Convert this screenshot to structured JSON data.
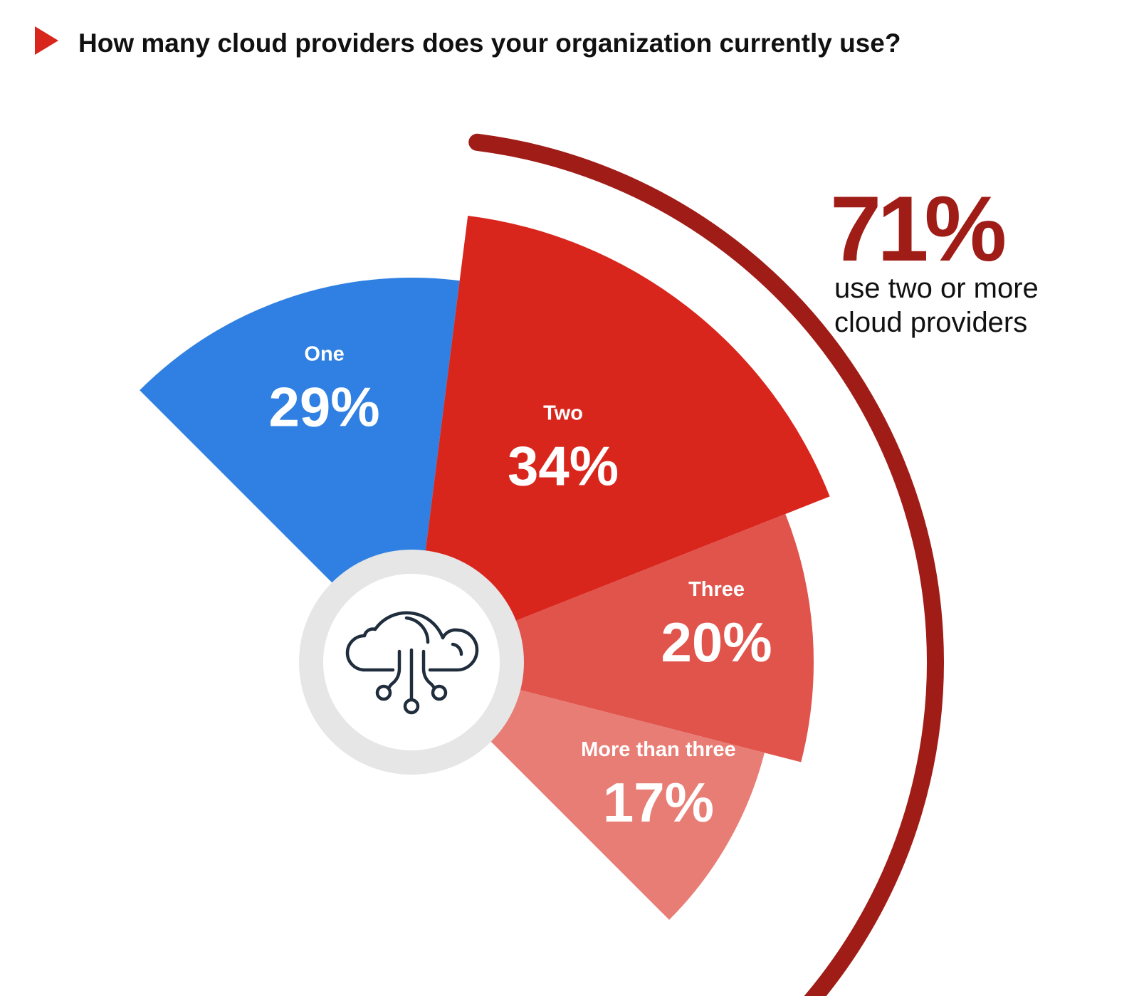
{
  "header": {
    "question": "How many cloud providers does your organization currently use?",
    "marker_icon": "play-triangle-icon"
  },
  "chart_data": {
    "type": "pie",
    "title": "How many cloud providers does your organization currently use?",
    "categories": [
      "One",
      "Two",
      "Three",
      "More than three"
    ],
    "values": [
      29,
      34,
      20,
      17
    ],
    "value_labels": [
      "29%",
      "34%",
      "20%",
      "17%"
    ],
    "colors": [
      "#2f80e2",
      "#d9261d",
      "#e0544c",
      "#e87d75"
    ],
    "unit": "%",
    "center_icon": "cloud-network-icon",
    "annotation": {
      "value": "71%",
      "lines": [
        "use two or more",
        "cloud providers"
      ],
      "covers": [
        "Two",
        "Three",
        "More than three"
      ],
      "color": "#a01c17"
    }
  },
  "colors": {
    "accent": "#d9261d",
    "bracket": "#a01c17",
    "hub_ring": "#e6e6e6",
    "icon_stroke": "#1f2d3d"
  }
}
